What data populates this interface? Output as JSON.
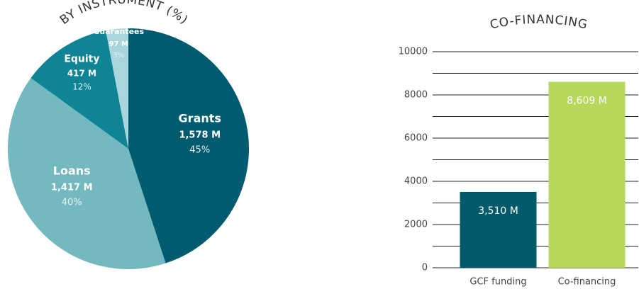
{
  "chart_data": [
    {
      "type": "pie",
      "title": "BY INSTRUMENT (%)",
      "categories": [
        "Grants",
        "Loans",
        "Equity",
        "Guarantees"
      ],
      "values": [
        45,
        40,
        12,
        3
      ],
      "value_labels": [
        "45%",
        "40%",
        "12%",
        "3%"
      ],
      "amounts": [
        1578,
        1417,
        417,
        97
      ],
      "amount_labels": [
        "1,578 M",
        "1,417 M",
        "417 M",
        "97 M"
      ],
      "colors": [
        "#005b6e",
        "#74b8c0",
        "#0e8494",
        "#a9d6dd"
      ]
    },
    {
      "type": "bar",
      "title": "CO-FINANCING",
      "categories": [
        "GCF funding",
        "Co-financing"
      ],
      "values": [
        3510,
        8609
      ],
      "value_labels": [
        "3,510 M",
        "8,609 M"
      ],
      "colors": [
        "#005a6a",
        "#b8d85c"
      ],
      "ylim": [
        0,
        10000
      ],
      "yticks": [
        0,
        2000,
        4000,
        6000,
        8000,
        10000
      ],
      "minor_gridlines": [
        1000,
        3000,
        5000,
        7000,
        9000
      ],
      "grid": true
    }
  ]
}
